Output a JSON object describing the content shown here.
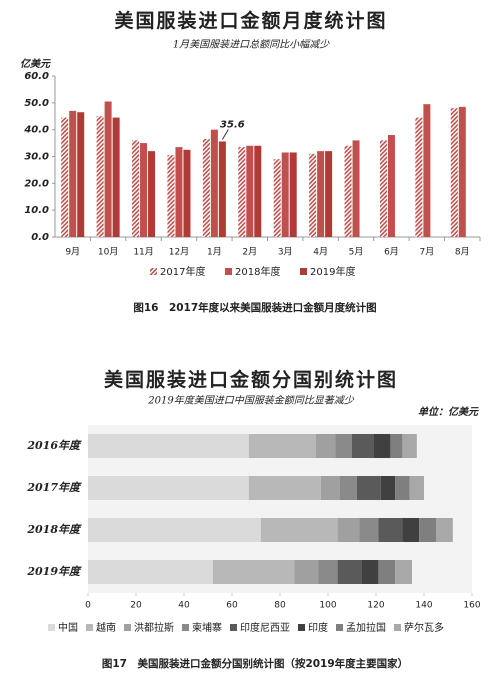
{
  "chart_data": [
    {
      "type": "bar",
      "title": "美国服装进口金额月度统计图",
      "subtitle": "1月美国服装进口总额同比小幅减少",
      "y_label": "亿美元",
      "caption": "图16　2017年度以来美国服装进口金额月度统计图",
      "categories": [
        "9月",
        "10月",
        "11月",
        "12月",
        "1月",
        "2月",
        "3月",
        "4月",
        "5月",
        "6月",
        "7月",
        "8月"
      ],
      "series": [
        {
          "name": "2017年度",
          "color": "#c0504d",
          "pattern": "hatch",
          "values": [
            44.5,
            45,
            36,
            30.5,
            36.5,
            33.5,
            29,
            31,
            34,
            36,
            44.5,
            48
          ]
        },
        {
          "name": "2018年度",
          "color": "#c0504d",
          "values": [
            47,
            50.5,
            35,
            33.5,
            40,
            34,
            31.5,
            32,
            36,
            38,
            49.5,
            48.5
          ]
        },
        {
          "name": "2019年度",
          "color": "#b03a36",
          "values": [
            46.5,
            44.5,
            32,
            32.5,
            35.6,
            34,
            31.5,
            32,
            null,
            null,
            null,
            null
          ]
        }
      ],
      "ylim": [
        0,
        60
      ],
      "yticks": [
        {
          "value": 0,
          "label": "0.0"
        },
        {
          "value": 10,
          "label": "10.0"
        },
        {
          "value": 20,
          "label": "20.0"
        },
        {
          "value": 30,
          "label": "30.0"
        },
        {
          "value": 40,
          "label": "40.0"
        },
        {
          "value": 50,
          "label": "50.0"
        },
        {
          "value": 60,
          "label": "60.0"
        }
      ],
      "labeled_point": {
        "series": 2,
        "index": 4
      }
    },
    {
      "type": "stackedbar",
      "title": "美国服装进口金额分国别统计图",
      "subtitle": "2019年度美国进口中国服装金额同比显著减少",
      "unit": "单位：亿美元",
      "caption": "图17　美国服装进口金额分国别统计图（按2019年度主要国家）",
      "categories": [
        "2016年度",
        "2017年度",
        "2018年度",
        "2019年度"
      ],
      "series": [
        {
          "name": "中国",
          "color": "#dadada",
          "values": [
            67,
            67,
            72,
            52
          ]
        },
        {
          "name": "越南",
          "color": "#b8b8b8",
          "values": [
            28,
            30,
            32,
            34
          ]
        },
        {
          "name": "洪都拉斯",
          "color": "#a0a0a0",
          "values": [
            8,
            8,
            9,
            10
          ]
        },
        {
          "name": "柬埔寨",
          "color": "#8a8a8a",
          "values": [
            7,
            7,
            8,
            8
          ]
        },
        {
          "name": "印度尼西亚",
          "color": "#5a5a5a",
          "values": [
            9,
            10,
            10,
            10
          ]
        },
        {
          "name": "印度",
          "color": "#404040",
          "values": [
            7,
            6,
            7,
            7
          ]
        },
        {
          "name": "孟加拉国",
          "color": "#7f7f7f",
          "values": [
            5,
            6,
            7,
            7
          ]
        },
        {
          "name": "萨尔瓦多",
          "color": "#a8a8a8",
          "values": [
            6,
            6,
            7,
            7
          ]
        }
      ],
      "xlim": [
        0,
        160
      ],
      "xticks": [
        0,
        20,
        40,
        60,
        80,
        100,
        120,
        140,
        160
      ]
    }
  ]
}
